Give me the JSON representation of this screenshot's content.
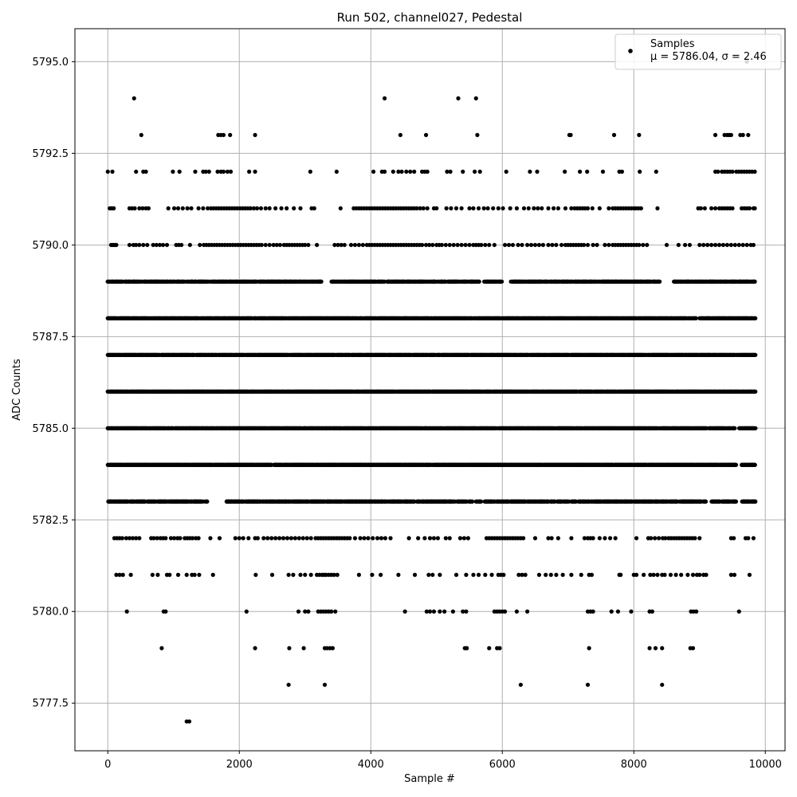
{
  "chart_data": {
    "type": "scatter",
    "title": "Run 502, channel027, Pedestal",
    "xlabel": "Sample #",
    "ylabel": "ADC Counts",
    "xlim": [
      -500,
      10300
    ],
    "ylim": [
      5776.2,
      5795.9
    ],
    "x_ticks": [
      0,
      2000,
      4000,
      6000,
      8000,
      10000
    ],
    "y_ticks": [
      5777.5,
      5780.0,
      5782.5,
      5785.0,
      5787.5,
      5790.0,
      5792.5,
      5795.0
    ],
    "x_tick_labels": [
      "0",
      "2000",
      "4000",
      "6000",
      "8000",
      "10000"
    ],
    "y_tick_labels": [
      "5777.5",
      "5780.0",
      "5782.5",
      "5785.0",
      "5787.5",
      "5790.0",
      "5792.5",
      "5795.0"
    ],
    "grid": true,
    "legend": {
      "placement": "top-right",
      "label": "Samples",
      "stats": "μ = 5786.04, σ = 2.46"
    },
    "colors": {
      "points": "#000000",
      "grid": "#b0b0b0"
    },
    "series": [
      {
        "name": "Samples",
        "mu": 5786.04,
        "sigma": 2.46,
        "x_range": [
          0,
          9850
        ],
        "levels": [
          {
            "y": 5777,
            "x": [
              1200,
              1240
            ]
          },
          {
            "y": 5778,
            "x": [
              2750,
              3300,
              6280,
              7300,
              8430
            ]
          },
          {
            "y": 5779,
            "x": [
              820,
              2240,
              2760,
              2980,
              3300,
              3340,
              3380,
              3420,
              5430,
              5460,
              5800,
              5920,
              5960,
              7320,
              8240,
              8330,
              8430,
              8860,
              8900
            ]
          },
          {
            "y": 5780,
            "x": [
              290,
              850,
              880,
              2110,
              2900,
              3000,
              3050,
              3200,
              3240,
              3280,
              3320,
              3360,
              3400,
              3460,
              4520,
              4850,
              4900,
              4960,
              5050,
              5120,
              5250,
              5400,
              5450,
              5880,
              5920,
              5960,
              6000,
              6040,
              6220,
              6380,
              7300,
              7340,
              7380,
              7660,
              7760,
              7960,
              8240,
              8280,
              8870,
              8910,
              8950,
              9600
            ]
          },
          {
            "y": 5781,
            "x": [
              130,
              180,
              230,
              350,
              680,
              760,
              900,
              940,
              1070,
              1200,
              1280,
              1320,
              1390,
              1600,
              2250,
              2500,
              2750,
              2820,
              2930,
              3000,
              3090,
              3180,
              3220,
              3260,
              3290,
              3320,
              3360,
              3400,
              3440,
              3490,
              3820,
              4020,
              4150,
              4420,
              4670,
              4880,
              4940,
              5050,
              5300,
              5450,
              5560,
              5640,
              5740,
              5840,
              5940,
              5980,
              6020,
              6250,
              6300,
              6350,
              6560,
              6660,
              6740,
              6820,
              6920,
              7050,
              7200,
              7320,
              7360,
              7780,
              7800,
              8000,
              8040,
              8150,
              8250,
              8300,
              8360,
              8430,
              8470,
              8560,
              8640,
              8720,
              8820,
              8900,
              8960,
              9000,
              9060,
              9100,
              9480,
              9530,
              9760
            ]
          },
          {
            "y": 5782,
            "x": [
              100,
              140,
              180,
              220,
              280,
              330,
              380,
              430,
              480,
              660,
              700,
              750,
              800,
              840,
              880,
              960,
              1010,
              1060,
              1100,
              1170,
              1210,
              1250,
              1290,
              1340,
              1380,
              1560,
              1700,
              1940,
              2000,
              2060,
              2140,
              2240,
              2280,
              2370,
              2430,
              2490,
              2550,
              2610,
              2670,
              2730,
              2790,
              2850,
              2910,
              2970,
              3030,
              3090,
              3160,
              3200,
              3240,
              3280,
              3320,
              3360,
              3400,
              3440,
              3480,
              3520,
              3560,
              3600,
              3640,
              3680,
              3760,
              3840,
              3900,
              3960,
              4030,
              4100,
              4160,
              4220,
              4300,
              4580,
              4720,
              4820,
              4900,
              4960,
              5020,
              5140,
              5200,
              5360,
              5420,
              5480,
              5760,
              5800,
              5840,
              5880,
              5920,
              5960,
              6000,
              6040,
              6080,
              6120,
              6160,
              6200,
              6240,
              6280,
              6320,
              6500,
              6700,
              6750,
              6850,
              7050,
              7250,
              7300,
              7340,
              7380,
              7480,
              7560,
              7640,
              7720,
              8040,
              8220,
              8260,
              8320,
              8380,
              8440,
              8480,
              8530,
              8570,
              8610,
              8650,
              8690,
              8730,
              8770,
              8810,
              8850,
              8890,
              8930,
              9000,
              9480,
              9520,
              9700,
              9740,
              9820
            ]
          },
          {
            "y": 5783,
            "x_start": 0,
            "x_end": 9850,
            "density": 0.7,
            "gaps": [
              [
                1520,
                1800
              ],
              [
                5680,
                5730
              ],
              [
                7120,
                7160
              ],
              [
                9100,
                9180
              ],
              [
                9560,
                9640
              ]
            ]
          },
          {
            "y": 5784,
            "x_start": 0,
            "x_end": 9850,
            "density": 0.9,
            "gaps": [
              [
                9560,
                9620
              ]
            ]
          },
          {
            "y": 5785,
            "x_start": 0,
            "x_end": 9850,
            "density": 0.9,
            "gaps": [
              [
                9110,
                9140
              ],
              [
                9540,
                9600
              ]
            ]
          },
          {
            "y": 5786,
            "x_start": 0,
            "x_end": 9850,
            "density": 0.9,
            "gaps": []
          },
          {
            "y": 5787,
            "x_start": 0,
            "x_end": 9850,
            "density": 0.9,
            "gaps": []
          },
          {
            "y": 5788,
            "x_start": 0,
            "x_end": 9850,
            "density": 0.85,
            "gaps": [
              [
                8950,
                9000
              ]
            ]
          },
          {
            "y": 5789,
            "x_start": 0,
            "x_end": 9850,
            "density": 0.75,
            "gaps": [
              [
                3250,
                3400
              ],
              [
                5650,
                5720
              ],
              [
                6000,
                6120
              ],
              [
                8400,
                8600
              ]
            ]
          },
          {
            "y": 5790,
            "x": [
              50,
              70,
              90,
              110,
              130,
              330,
              390,
              430,
              480,
              540,
              600,
              690,
              740,
              790,
              840,
              900,
              1040,
              1080,
              1120,
              1250,
              1400,
              1460,
              1500,
              1540,
              1580,
              1620,
              1660,
              1700,
              1740,
              1780,
              1820,
              1860,
              1900,
              1940,
              1980,
              2020,
              2060,
              2100,
              2140,
              2180,
              2220,
              2260,
              2300,
              2340,
              2400,
              2460,
              2520,
              2570,
              2620,
              2680,
              2720,
              2760,
              2800,
              2840,
              2880,
              2920,
              2960,
              3000,
              3050,
              3180,
              3450,
              3500,
              3550,
              3600,
              3700,
              3760,
              3820,
              3880,
              3940,
              3980,
              4020,
              4060,
              4100,
              4140,
              4180,
              4220,
              4260,
              4300,
              4340,
              4380,
              4420,
              4460,
              4500,
              4540,
              4580,
              4620,
              4660,
              4700,
              4740,
              4780,
              4840,
              4890,
              4940,
              5000,
              5040,
              5080,
              5140,
              5200,
              5260,
              5320,
              5380,
              5440,
              5500,
              5560,
              5600,
              5640,
              5680,
              5740,
              5800,
              5880,
              6040,
              6100,
              6160,
              6240,
              6300,
              6380,
              6440,
              6500,
              6560,
              6620,
              6700,
              6760,
              6820,
              6900,
              6960,
              7000,
              7040,
              7080,
              7120,
              7160,
              7200,
              7240,
              7300,
              7380,
              7440,
              7560,
              7620,
              7680,
              7720,
              7760,
              7800,
              7840,
              7880,
              7920,
              7960,
              8000,
              8040,
              8080,
              8140,
              8200,
              8500,
              8680,
              8780,
              8850,
              9000,
              9060,
              9120,
              9180,
              9240,
              9300,
              9360,
              9420,
              9480,
              9540,
              9600,
              9660,
              9720,
              9780,
              9820
            ]
          },
          {
            "y": 5791,
            "x": [
              30,
              60,
              90,
              330,
              370,
              410,
              480,
              530,
              580,
              620,
              920,
              1010,
              1070,
              1140,
              1210,
              1270,
              1380,
              1450,
              1520,
              1570,
              1610,
              1650,
              1690,
              1730,
              1770,
              1810,
              1850,
              1890,
              1930,
              1970,
              2010,
              2050,
              2090,
              2130,
              2170,
              2220,
              2270,
              2330,
              2400,
              2460,
              2550,
              2640,
              2720,
              2830,
              2930,
              3100,
              3140,
              3540,
              3740,
              3780,
              3820,
              3860,
              3900,
              3940,
              3980,
              4020,
              4060,
              4100,
              4140,
              4180,
              4220,
              4260,
              4300,
              4340,
              4380,
              4420,
              4460,
              4500,
              4540,
              4580,
              4620,
              4660,
              4700,
              4750,
              4800,
              4860,
              4960,
              5000,
              5150,
              5220,
              5300,
              5380,
              5500,
              5560,
              5640,
              5720,
              5780,
              5860,
              5940,
              6010,
              6120,
              6220,
              6330,
              6400,
              6480,
              6540,
              6600,
              6700,
              6780,
              6850,
              6960,
              7050,
              7100,
              7140,
              7180,
              7220,
              7260,
              7300,
              7370,
              7480,
              7620,
              7680,
              7720,
              7760,
              7800,
              7840,
              7880,
              7920,
              7960,
              8000,
              8030,
              8070,
              8110,
              8360,
              8980,
              9020,
              9080,
              9180,
              9240,
              9300,
              9340,
              9380,
              9420,
              9460,
              9500,
              9640,
              9680,
              9720,
              9760,
              9820,
              9840
            ]
          },
          {
            "y": 5792,
            "x": [
              0,
              70,
              430,
              540,
              580,
              990,
              1090,
              1330,
              1450,
              1490,
              1540,
              1670,
              1720,
              1760,
              1820,
              1870,
              2150,
              2240,
              3080,
              3480,
              4040,
              4170,
              4210,
              4340,
              4420,
              4470,
              4540,
              4600,
              4660,
              4780,
              4820,
              4860,
              5160,
              5210,
              5400,
              5580,
              5660,
              6060,
              6420,
              6530,
              6950,
              7180,
              7290,
              7530,
              7780,
              7820,
              8090,
              8340,
              9240,
              9280,
              9340,
              9380,
              9420,
              9460,
              9500,
              9560,
              9600,
              9640,
              9680,
              9720,
              9760,
              9800,
              9840
            ]
          },
          {
            "y": 5793,
            "x": [
              510,
              1680,
              1720,
              1760,
              1860,
              2240,
              4450,
              4840,
              5620,
              7020,
              7040,
              7700,
              8080,
              9240,
              9380,
              9420,
              9450,
              9480,
              9620,
              9660,
              9740
            ]
          },
          {
            "y": 5794,
            "x": [
              400,
              4210,
              5330,
              5600
            ]
          },
          {
            "y": 5795,
            "x": [
              9720
            ]
          }
        ]
      }
    ]
  }
}
